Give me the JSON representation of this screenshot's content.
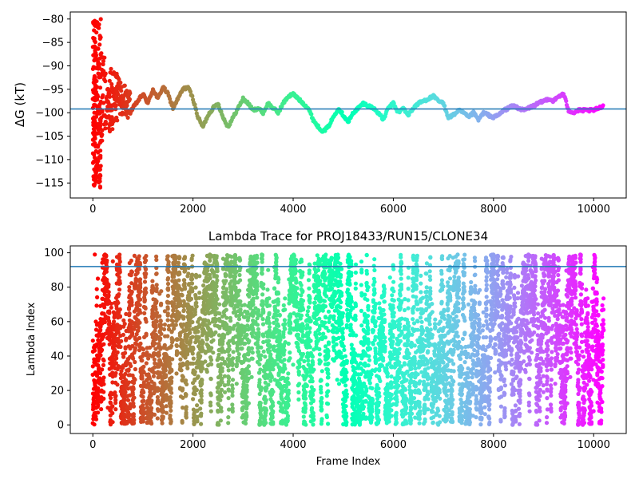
{
  "chart_data": [
    {
      "type": "scatter",
      "title": "",
      "xlabel": "",
      "ylabel": "ΔG (kT)",
      "xlim": [
        -450,
        10650
      ],
      "ylim": [
        -118.2,
        -78.5
      ],
      "xticks": [
        0,
        2000,
        4000,
        6000,
        8000,
        10000
      ],
      "xtick_labels": [
        "0",
        "2000",
        "4000",
        "6000",
        "8000",
        "10000"
      ],
      "yticks": [
        -80,
        -85,
        -90,
        -95,
        -100,
        -105,
        -110,
        -115
      ],
      "ytick_labels": [
        "−80",
        "−85",
        "−90",
        "−95",
        "−100",
        "−105",
        "−110",
        "−115"
      ],
      "hline": -99.2,
      "hline_color": "#1f77b4",
      "colormap": "rainbow (reversed: red at frame 0 → violet at frame 10200)",
      "grid": false,
      "x_max": 10200,
      "series": [
        {
          "x": [
            0,
            20,
            40,
            60,
            80,
            100,
            120,
            150,
            200,
            250,
            300,
            350,
            400,
            450,
            500,
            600,
            700,
            800,
            900,
            1000,
            1100,
            1200,
            1300,
            1400,
            1500,
            1600,
            1700,
            1800,
            1900,
            2000,
            2100,
            2200,
            2300,
            2400,
            2500,
            2600,
            2700,
            2800,
            2900,
            3000,
            3100,
            3200,
            3300,
            3400,
            3500,
            3600,
            3700,
            3800,
            3900,
            4000,
            4100,
            4200,
            4300,
            4400,
            4500,
            4600,
            4700,
            4800,
            4900,
            5000,
            5100,
            5200,
            5300,
            5400,
            5500,
            5600,
            5700,
            5800,
            5900,
            6000,
            6100,
            6200,
            6300,
            6400,
            6500,
            6600,
            6700,
            6800,
            6900,
            7000,
            7100,
            7200,
            7300,
            7400,
            7500,
            7600,
            7700,
            7800,
            7900,
            8000,
            8100,
            8200,
            8300,
            8400,
            8500,
            8600,
            8700,
            8800,
            8900,
            9000,
            9100,
            9200,
            9300,
            9400,
            9500,
            9600,
            9700,
            9800,
            9900,
            10000,
            10100,
            10200
          ],
          "y": [
            -100,
            -105,
            -92,
            -112,
            -88,
            -107,
            -95,
            -110,
            -98,
            -103,
            -96,
            -101,
            -97,
            -99,
            -95.5,
            -98.5,
            -100.5,
            -99,
            -97.5,
            -96,
            -98,
            -95,
            -97,
            -94.5,
            -96,
            -99,
            -97,
            -95,
            -94.5,
            -97,
            -101,
            -103,
            -100.5,
            -99,
            -98,
            -101,
            -103,
            -101,
            -99,
            -97,
            -98,
            -99.5,
            -99,
            -100,
            -98,
            -99,
            -100,
            -98,
            -96.5,
            -96,
            -97,
            -98,
            -99,
            -101.5,
            -103,
            -104,
            -103,
            -101,
            -99,
            -100.5,
            -102,
            -100,
            -99,
            -98,
            -98.5,
            -99,
            -100,
            -101.5,
            -99,
            -98,
            -100,
            -99,
            -100.5,
            -99,
            -98,
            -97.5,
            -97,
            -96.5,
            -97.5,
            -98,
            -101,
            -100.5,
            -99.5,
            -100,
            -101,
            -100,
            -101.5,
            -100,
            -100.5,
            -101,
            -100.5,
            -99.5,
            -99,
            -98.5,
            -99,
            -99.5,
            -99,
            -98.5,
            -98,
            -97.5,
            -97,
            -97.5,
            -96.5,
            -96,
            -99.5,
            -100,
            -99.5,
            -99.5,
            -99.5,
            -99.5,
            -99,
            -98.5
          ]
        }
      ]
    },
    {
      "type": "scatter",
      "title": "Lambda Trace for PROJ18433/RUN15/CLONE34",
      "xlabel": "Frame Index",
      "ylabel": "Lambda Index",
      "xlim": [
        -450,
        10650
      ],
      "ylim": [
        -5,
        104
      ],
      "xticks": [
        0,
        2000,
        4000,
        6000,
        8000,
        10000
      ],
      "xtick_labels": [
        "0",
        "2000",
        "4000",
        "6000",
        "8000",
        "10000"
      ],
      "yticks": [
        0,
        20,
        40,
        60,
        80,
        100
      ],
      "ytick_labels": [
        "0",
        "20",
        "40",
        "60",
        "80",
        "100"
      ],
      "hline": 92,
      "hline_color": "#1f77b4",
      "colormap": "rainbow (reversed: red at frame 0 → violet at frame 10200)",
      "grid": false,
      "frames": 10200,
      "lambda_range": [
        0,
        99
      ],
      "series": [
        {
          "x": [
            0,
            20,
            40,
            60,
            80,
            100,
            150,
            200,
            300,
            400,
            500,
            700,
            900,
            1200,
            1500,
            2000,
            2500,
            3000,
            3500,
            4000,
            4500,
            5000,
            5500,
            6000,
            6500,
            7000,
            7500,
            8000,
            8500,
            9000,
            9500,
            10000,
            10200
          ],
          "y": [
            1,
            45,
            99,
            60,
            20,
            85,
            30,
            70,
            10,
            95,
            50,
            2,
            75,
            40,
            98,
            15,
            65,
            5,
            90,
            35,
            55,
            25,
            80,
            12,
            48,
            3,
            70,
            45,
            20,
            88,
            60,
            8,
            55
          ]
        }
      ]
    }
  ]
}
